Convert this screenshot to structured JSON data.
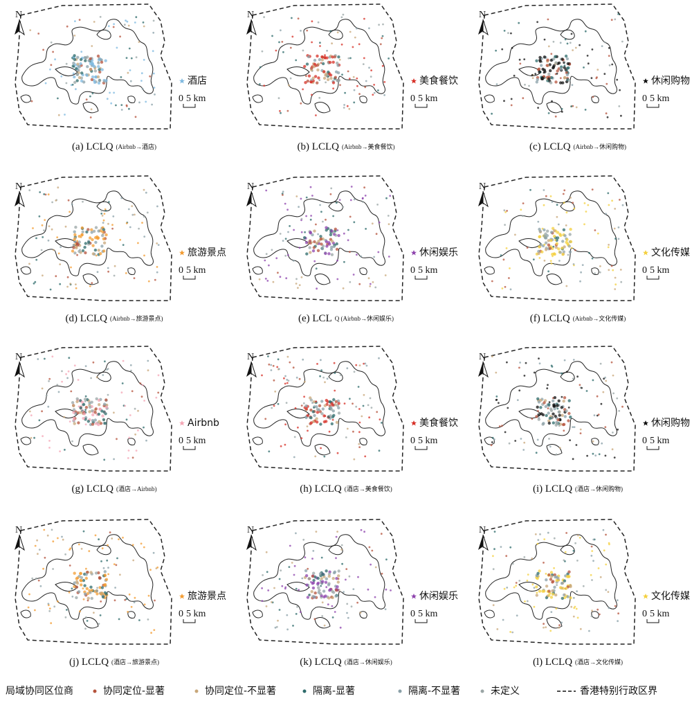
{
  "north": "N",
  "scale": {
    "zero": "0",
    "km": "5 km"
  },
  "panels": [
    {
      "caption": "(a) LCLQ",
      "sub": "(Airbnb→酒店)",
      "layer": "酒店",
      "color": "#7fb9e0"
    },
    {
      "caption": "(b) LCLQ",
      "sub": "(Airbnb→美食餐饮)",
      "layer": "美食餐饮",
      "color": "#d73027"
    },
    {
      "caption": "(c) LCLQ",
      "sub": "(Airbnb→休闲购物)",
      "layer": "休闲购物",
      "color": "#111111"
    },
    {
      "caption": "(d) LCLQ",
      "sub": "(Airbnb→旅游景点)",
      "layer": "旅游景点",
      "color": "#f39c32"
    },
    {
      "caption": "(e) LCL",
      "sub": "Q (Airbnb→休闲娱乐)",
      "layer": "休闲娱乐",
      "color": "#8e44ad"
    },
    {
      "caption": "(f) LCLQ",
      "sub": "(Airbnb→文化传媒)",
      "layer": "文化传媒",
      "color": "#f4d03f"
    },
    {
      "caption": "(g) LCLQ",
      "sub": "(酒店→Airbnb)",
      "layer": "Airbnb",
      "color": "#f4a6b5"
    },
    {
      "caption": "(h) LCLQ",
      "sub": "(酒店→美食餐饮)",
      "layer": "美食餐饮",
      "color": "#d73027"
    },
    {
      "caption": "(i) LCLQ",
      "sub": "(酒店→休闲购物)",
      "layer": "休闲购物",
      "color": "#111111"
    },
    {
      "caption": "(j) LCLQ",
      "sub": "(酒店→旅游景点)",
      "layer": "旅游景点",
      "color": "#f39c32"
    },
    {
      "caption": "(k) LCLQ",
      "sub": "(酒店→休闲娱乐)",
      "layer": "休闲娱乐",
      "color": "#8e44ad"
    },
    {
      "caption": "(l) LCLQ",
      "sub": "(酒店→文化传媒)",
      "layer": "文化传媒",
      "color": "#f4d03f"
    }
  ],
  "legend": {
    "title": "局域协同区位商",
    "items": [
      {
        "name": "协同定位-显著",
        "color": "#b5533c"
      },
      {
        "name": "协同定位-不显著",
        "color": "#c8a77a"
      },
      {
        "name": "隔离-显著",
        "color": "#2e6b6b"
      },
      {
        "name": "隔离-不显著",
        "color": "#8aa0a8"
      },
      {
        "name": "未定义",
        "color": "#9aa5a5"
      }
    ],
    "boundary": "香港特别行政区界"
  }
}
